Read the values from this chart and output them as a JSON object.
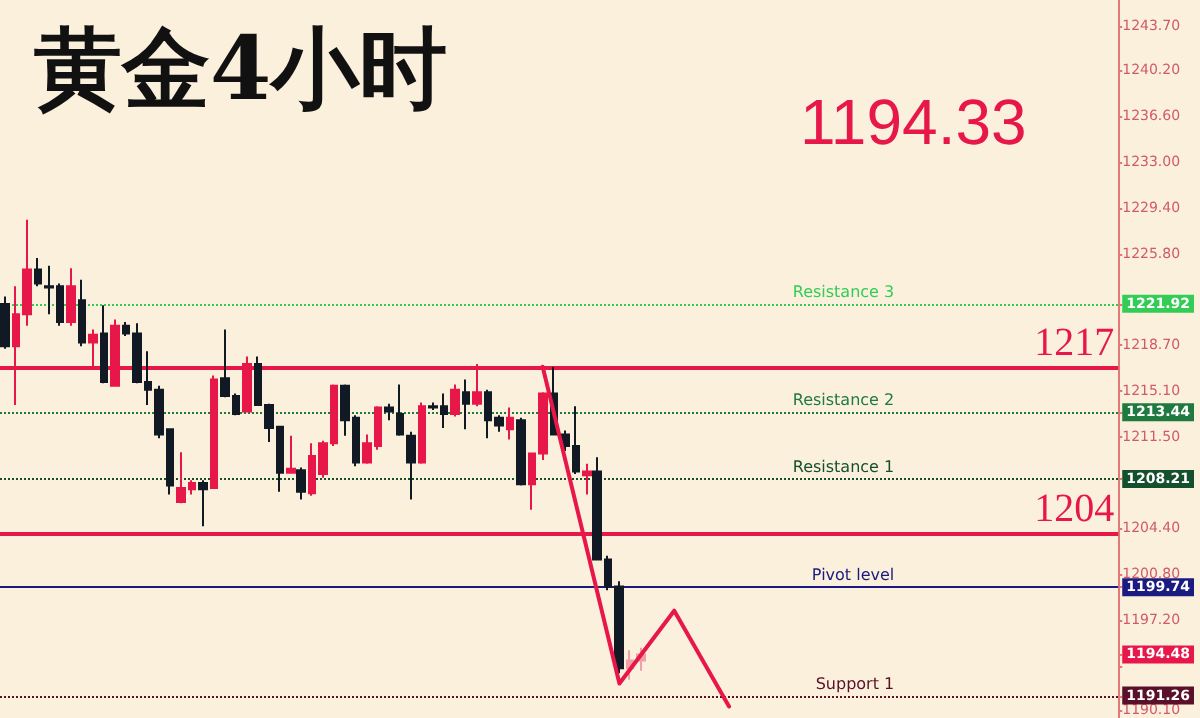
{
  "chart_data": {
    "type": "candlestick",
    "title": "黄金4小时",
    "annotations": [
      "1194.33"
    ],
    "categories": [
      null,
      null,
      null,
      null,
      null,
      null,
      null,
      null,
      null,
      null,
      null,
      null,
      null,
      null,
      null,
      null,
      null,
      null,
      null,
      null,
      null,
      null,
      null,
      null,
      null,
      null,
      null,
      null,
      null,
      null,
      null,
      null,
      null,
      null,
      null,
      null,
      null,
      null,
      null,
      null,
      null,
      null,
      null,
      null,
      null,
      null,
      null,
      null,
      null,
      null,
      null,
      null,
      null,
      null,
      null,
      null,
      null,
      null,
      null,
      null,
      null,
      null,
      null,
      null,
      null,
      null,
      null,
      null,
      null,
      null,
      null,
      null,
      null,
      null,
      null,
      null,
      null,
      null,
      null,
      null,
      null,
      null,
      null,
      null,
      null,
      null,
      null,
      null,
      null,
      null,
      null,
      null,
      null,
      null,
      null,
      null,
      null,
      null,
      null,
      null,
      null,
      null
    ],
    "series": [
      {
        "ohlc": [
          [
            1221.9,
            1222.5,
            1218.4,
            1218.6
          ],
          [
            1218.6,
            1223.3,
            1214.0,
            1221.1
          ],
          [
            1221.1,
            1228.5,
            1220.2,
            1224.6
          ],
          [
            1224.6,
            1225.5,
            1223.3,
            1223.5
          ],
          [
            1223.3,
            1224.9,
            1221.1,
            1223.2
          ],
          [
            1223.3,
            1223.5,
            1220.2,
            1220.5
          ],
          [
            1220.5,
            1224.7,
            1220.2,
            1223.3
          ],
          [
            1222.2,
            1223.8,
            1218.6,
            1218.9
          ],
          [
            1218.9,
            1219.9,
            1217.0,
            1219.5
          ],
          [
            1219.6,
            1221.8,
            1215.7,
            1215.8
          ],
          [
            1215.5,
            1220.7,
            1215.5,
            1220.2
          ],
          [
            1220.2,
            1220.5,
            1219.4,
            1219.6
          ],
          [
            1219.6,
            1220.4,
            1215.7,
            1215.8
          ],
          [
            1215.8,
            1218.2,
            1214.0,
            1215.2
          ],
          [
            1215.2,
            1215.5,
            1211.4,
            1211.7
          ],
          [
            1212.1,
            1212.1,
            1207.0,
            1207.7
          ],
          [
            1206.4,
            1210.3,
            1206.3,
            1207.5
          ],
          [
            1207.4,
            1208.1,
            1207.0,
            1207.9
          ],
          [
            1207.9,
            1208.1,
            1204.5,
            1207.4
          ],
          [
            1207.5,
            1216.3,
            1207.5,
            1216.0
          ],
          [
            1216.1,
            1219.9,
            1214.6,
            1214.7
          ],
          [
            1214.7,
            1214.9,
            1213.2,
            1213.3
          ],
          [
            1213.5,
            1217.8,
            1213.5,
            1217.2
          ],
          [
            1217.2,
            1217.8,
            1214.0,
            1214.0
          ],
          [
            1214.0,
            1214.1,
            1211.1,
            1212.2
          ],
          [
            1212.3,
            1212.3,
            1207.2,
            1208.7
          ],
          [
            1208.7,
            1211.6,
            1208.7,
            1209.0
          ],
          [
            1208.9,
            1209.1,
            1206.6,
            1207.2
          ],
          [
            1207.1,
            1211.0,
            1206.9,
            1210.0
          ],
          [
            1208.6,
            1211.2,
            1208.3,
            1211.0
          ],
          [
            1211.0,
            1215.6,
            1210.8,
            1215.5
          ],
          [
            1215.5,
            1215.6,
            1211.6,
            1212.8
          ],
          [
            1213.0,
            1213.2,
            1209.2,
            1209.5
          ],
          [
            1209.5,
            1211.7,
            1209.4,
            1211.0
          ],
          [
            1210.8,
            1213.9,
            1210.5,
            1213.8
          ],
          [
            1213.8,
            1214.1,
            1212.8,
            1213.5
          ],
          [
            1213.3,
            1215.6,
            1211.6,
            1211.7
          ],
          [
            1211.6,
            1211.9,
            1206.6,
            1209.5
          ],
          [
            1209.5,
            1214.2,
            1209.4,
            1213.9
          ],
          [
            1213.9,
            1214.2,
            1213.6,
            1213.8
          ],
          [
            1213.9,
            1214.9,
            1212.2,
            1213.3
          ],
          [
            1213.3,
            1215.6,
            1213.1,
            1215.2
          ],
          [
            1215.0,
            1216.0,
            1212.1,
            1214.1
          ],
          [
            1214.1,
            1217.2,
            1213.9,
            1215.0
          ],
          [
            1215.0,
            1215.2,
            1211.4,
            1212.8
          ],
          [
            1213.0,
            1213.2,
            1211.9,
            1212.4
          ],
          [
            1212.1,
            1213.8,
            1211.3,
            1213.0
          ],
          [
            1212.8,
            1213.0,
            1207.7,
            1207.8
          ],
          [
            1207.8,
            1210.2,
            1205.8,
            1210.2
          ],
          [
            1210.2,
            1215.0,
            1209.7,
            1214.9
          ],
          [
            1214.9,
            1217.0,
            1211.7,
            1211.7
          ],
          [
            1211.7,
            1212.0,
            1210.4,
            1210.8
          ],
          [
            1210.8,
            1213.9,
            1208.6,
            1208.8
          ],
          [
            1208.5,
            1209.4,
            1207.0,
            1208.8
          ],
          [
            1208.8,
            1209.9,
            1201.9,
            1201.9
          ],
          [
            1201.9,
            1202.2,
            1199.5,
            1199.8
          ],
          [
            1199.8,
            1200.2,
            1193.0,
            1193.4
          ],
          [
            1193.4,
            1194.8,
            1192.5,
            1194.0
          ],
          [
            1194.0,
            1195.0,
            1193.2,
            1194.48
          ],
          null,
          null,
          null,
          null,
          null,
          null,
          null,
          null,
          null,
          null,
          null,
          null,
          null,
          null,
          null,
          null,
          null,
          null,
          null,
          null,
          null,
          null,
          null,
          null,
          null,
          null,
          null,
          null,
          null,
          null,
          null,
          null,
          null,
          null,
          null,
          null,
          null,
          null,
          null,
          null,
          null,
          null,
          null
        ],
        "colors": [
          "#111a24",
          "#e8174a",
          "#e8174a",
          "#111a24",
          "#111a24",
          "#111a24",
          "#e8174a",
          "#111a24",
          "#e8174a",
          "#111a24",
          "#e8174a",
          "#111a24",
          "#111a24",
          "#111a24",
          "#111a24",
          "#111a24",
          "#e8174a",
          "#e8174a",
          "#111a24",
          "#e8174a",
          "#111a24",
          "#111a24",
          "#e8174a",
          "#111a24",
          "#111a24",
          "#111a24",
          "#e8174a",
          "#111a24",
          "#e8174a",
          "#e8174a",
          "#e8174a",
          "#111a24",
          "#111a24",
          "#e8174a",
          "#e8174a",
          "#111a24",
          "#111a24",
          "#111a24",
          "#e8174a",
          "#111a24",
          "#111a24",
          "#e8174a",
          "#111a24",
          "#e8174a",
          "#111a24",
          "#111a24",
          "#e8174a",
          "#111a24",
          "#e8174a",
          "#e8174a",
          "#111a24",
          "#111a24",
          "#111a24",
          "#e8174a",
          "#111a24",
          "#111a24",
          "#111a24",
          "#f2a0a8",
          "#f2a0a8",
          null,
          null,
          null,
          null,
          null,
          null,
          null,
          null,
          null,
          null,
          null,
          null,
          null,
          null,
          null,
          null,
          null,
          null,
          null,
          null,
          null,
          null,
          null,
          null,
          null,
          null,
          null,
          null,
          null,
          null,
          null,
          null,
          null,
          null,
          null,
          null,
          null,
          null,
          null,
          null,
          null,
          null,
          null
        ]
      },
      {
        "type": "line",
        "color": "#e8174a",
        "values": [
          null,
          null,
          null,
          null,
          null,
          null,
          null,
          null,
          null,
          null,
          null,
          null,
          null,
          null,
          null,
          null,
          null,
          null,
          null,
          null,
          null,
          null,
          null,
          null,
          null,
          null,
          null,
          null,
          null,
          null,
          null,
          null,
          null,
          null,
          null,
          null,
          null,
          null,
          null,
          null,
          null,
          null,
          null,
          null,
          null,
          null,
          null,
          null,
          null,
          1217.0,
          null,
          null,
          null,
          null,
          null,
          null,
          1192.2,
          null,
          null,
          null,
          null,
          1197.9,
          null,
          null,
          null,
          null,
          1190.4,
          null,
          null,
          null,
          null,
          null,
          null,
          null,
          null,
          null,
          null,
          null,
          null,
          null,
          null,
          null,
          null,
          null,
          null,
          null,
          null,
          null,
          null,
          null,
          null,
          null,
          null,
          null,
          null,
          null,
          null,
          null,
          null,
          null,
          null,
          null
        ]
      }
    ],
    "ylim": [
      1189.5,
      1245.7
    ],
    "yticks": [
      {
        "value": 1243.7,
        "label": "1243.70"
      },
      {
        "value": 1240.2,
        "label": "1240.20"
      },
      {
        "value": 1236.6,
        "label": "1236.60"
      },
      {
        "value": 1233.0,
        "label": "1233.00"
      },
      {
        "value": 1229.4,
        "label": "1229.40"
      },
      {
        "value": 1225.8,
        "label": "1225.80"
      },
      {
        "value": 1218.7,
        "label": "1218.70"
      },
      {
        "value": 1215.1,
        "label": "1215.10"
      },
      {
        "value": 1211.5,
        "label": "1211.50"
      },
      {
        "value": 1204.4,
        "label": "1204.40"
      },
      {
        "value": 1200.8,
        "label": "1200.80"
      },
      {
        "value": 1197.2,
        "label": "1197.20"
      },
      {
        "value": 1193.6,
        "label": null
      },
      {
        "value": 1190.1,
        "label": "1190.10"
      },
      1221.92,
      1213.44,
      1208.21,
      1199.74,
      1194.48,
      1191.26
    ],
    "ref_lines": [
      {
        "axis": "y",
        "value": 1217,
        "label": "1217",
        "color": "#e8174a",
        "line_style": "solid"
      },
      {
        "axis": "y",
        "value": 1204,
        "label": "1204",
        "color": "#e8174a",
        "line_style": "solid"
      },
      {
        "axis": "y",
        "value": 1221.92,
        "label": "Resistance 3",
        "color": "#33cc55",
        "line_style": "dotted"
      },
      {
        "axis": "y",
        "value": 1213.44,
        "label": "Resistance 2",
        "color": "#1f7a3f",
        "line_style": "dotted"
      },
      {
        "axis": "y",
        "value": 1208.21,
        "label": "Resistance 1",
        "color": "#14502e",
        "line_style": "dotted"
      },
      {
        "axis": "y",
        "value": 1199.74,
        "label": "Pivot level",
        "color": "#1a1a80",
        "line_style": "solid"
      },
      {
        "axis": "y",
        "value": 1191.26,
        "label": "Support 1",
        "color": "#5a1028",
        "line_style": "dotted"
      }
    ],
    "tick_labels": "y",
    "grid": false
  }
}
